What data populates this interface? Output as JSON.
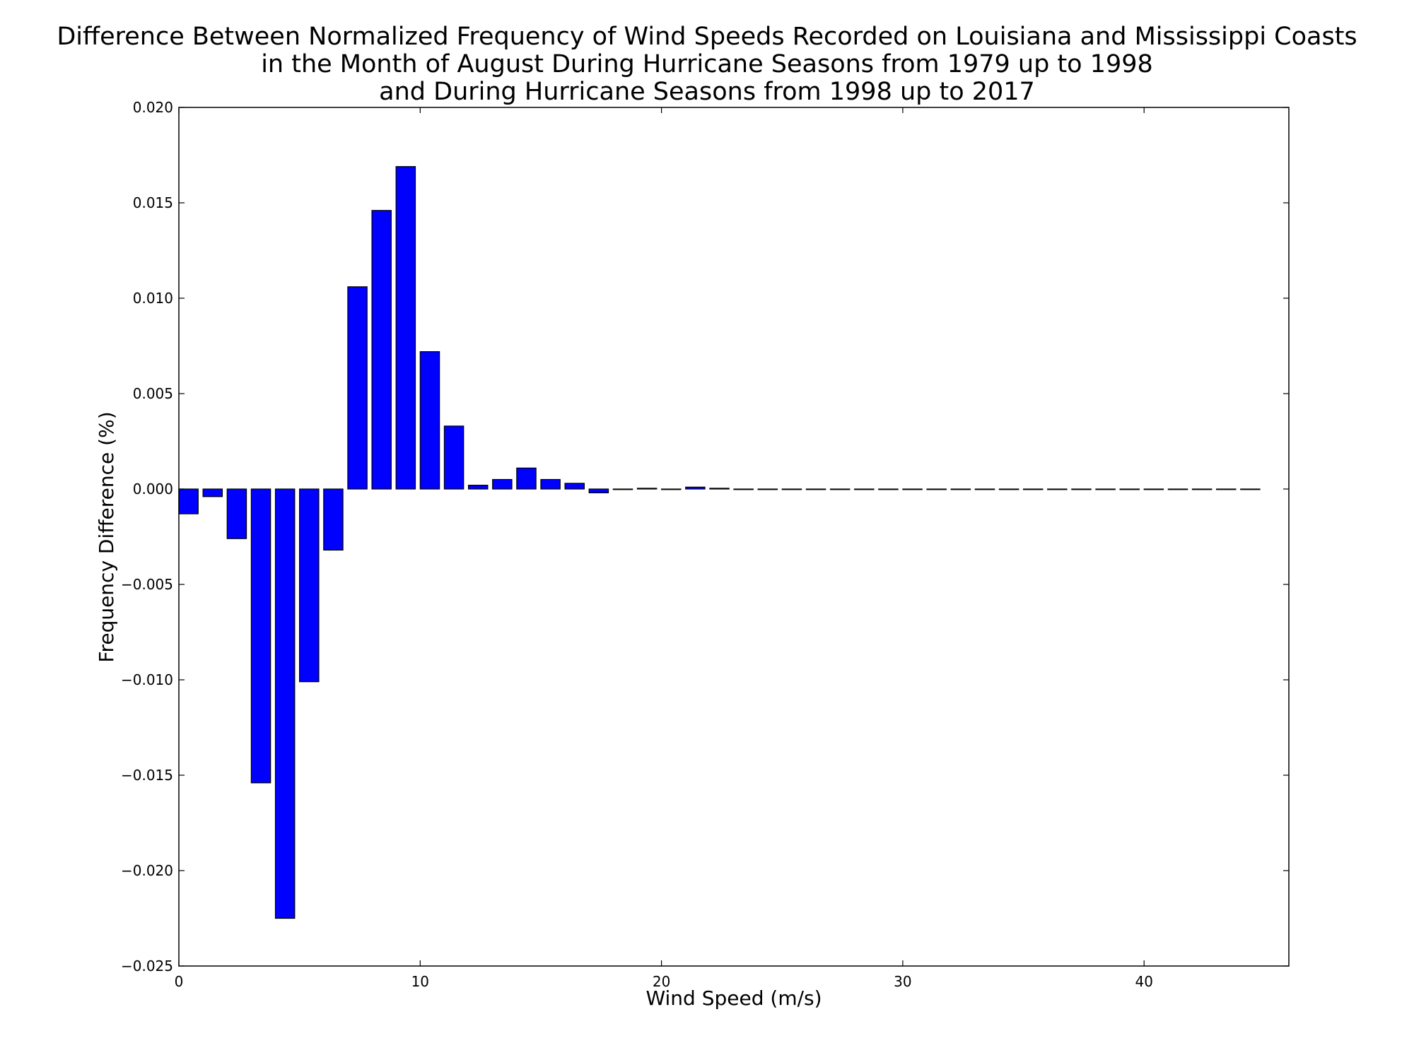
{
  "chart_data": {
    "type": "bar",
    "title": [
      "Difference Between Normalized Frequency of Wind Speeds Recorded on Louisiana and Mississippi Coasts",
      "in the Month of August During Hurricane Seasons from 1979 up to 1998",
      "and During Hurricane Seasons from 1998 up to 2017"
    ],
    "xlabel": "Wind Speed (m/s)",
    "ylabel": "Frequency Difference (%)",
    "xlim": [
      0,
      46
    ],
    "ylim": [
      -0.025,
      0.02
    ],
    "xticks": [
      0,
      10,
      20,
      30,
      40
    ],
    "xtick_labels": [
      "0",
      "10",
      "20",
      "30",
      "40"
    ],
    "yticks": [
      0.02,
      0.015,
      0.01,
      0.005,
      0.0,
      -0.005,
      -0.01,
      -0.015,
      -0.02,
      -0.025
    ],
    "ytick_labels": [
      "0.020",
      "0.015",
      "0.010",
      "0.005",
      "0.000",
      "−0.005",
      "−0.010",
      "−0.015",
      "−0.020",
      "−0.025"
    ],
    "bar_width": 0.8,
    "bar_color": "#0000ff",
    "bar_edge_color": "#000000",
    "grid": false,
    "x": [
      0,
      1,
      2,
      3,
      4,
      5,
      6,
      7,
      8,
      9,
      10,
      11,
      12,
      13,
      14,
      15,
      16,
      17,
      18,
      19,
      20,
      21,
      22,
      23,
      24,
      25,
      26,
      27,
      28,
      29,
      30,
      31,
      32,
      33,
      34,
      35,
      36,
      37,
      38,
      39,
      40,
      41,
      42,
      43,
      44
    ],
    "values": [
      -0.0013,
      -0.0004,
      -0.0026,
      -0.0154,
      -0.0225,
      -0.0101,
      -0.0032,
      0.0106,
      0.0146,
      0.0169,
      0.0072,
      0.0033,
      0.0002,
      0.0005,
      0.0011,
      0.0005,
      0.0003,
      -0.0002,
      0.0,
      4e-05,
      0.0,
      0.0001,
      4e-05,
      0,
      0,
      0,
      0,
      0,
      0,
      0,
      0,
      0,
      0,
      0,
      0,
      0,
      0,
      0,
      0,
      0,
      0,
      0,
      0,
      0,
      0
    ]
  }
}
